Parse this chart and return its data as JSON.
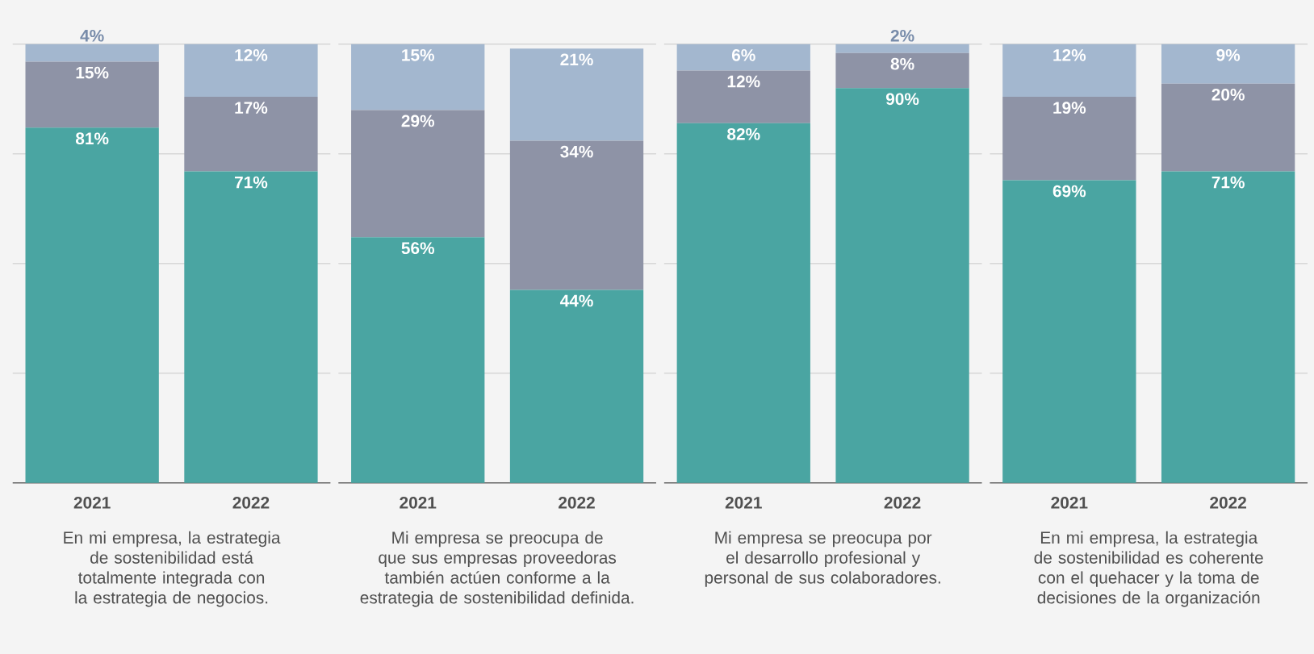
{
  "chart_data": [
    {
      "type": "bar",
      "stacked": true,
      "categories": [
        "2021",
        "2022"
      ],
      "xlabel": "En mi empresa, la estrategia de sostenibilidad está totalmente integrada con la estrategia de negocios.",
      "ylim": [
        0,
        100
      ],
      "yticks": [
        {
          "value": 0,
          "label": null
        },
        {
          "value": 25,
          "label": null
        },
        {
          "value": 50,
          "label": null
        },
        {
          "value": 75,
          "label": null
        },
        {
          "value": 100,
          "label": null
        }
      ],
      "grid": "y",
      "tick_labels": "x",
      "series": [
        {
          "color": "#4aa5a2",
          "values": [
            81,
            71
          ],
          "value_labels": [
            "81%",
            "71%"
          ]
        },
        {
          "color": "#8e93a6",
          "values": [
            15,
            17
          ],
          "value_labels": [
            "15%",
            "17%"
          ]
        },
        {
          "color": "#a3b7cf",
          "values": [
            4,
            12
          ],
          "value_labels": [
            "4%",
            "12%"
          ]
        }
      ]
    },
    {
      "type": "bar",
      "stacked": true,
      "categories": [
        "2021",
        "2022"
      ],
      "xlabel": "Mi empresa se preocupa de que sus empresas proveedoras también actúen conforme a la estrategia de sostenibilidad definida.",
      "ylim": [
        0,
        100
      ],
      "yticks": [
        {
          "value": 0,
          "label": null
        },
        {
          "value": 25,
          "label": null
        },
        {
          "value": 50,
          "label": null
        },
        {
          "value": 75,
          "label": null
        },
        {
          "value": 100,
          "label": null
        }
      ],
      "grid": "y",
      "tick_labels": "x",
      "series": [
        {
          "color": "#4aa5a2",
          "values": [
            56,
            44
          ],
          "value_labels": [
            "56%",
            "44%"
          ]
        },
        {
          "color": "#8e93a6",
          "values": [
            29,
            34
          ],
          "value_labels": [
            "29%",
            "34%"
          ]
        },
        {
          "color": "#a3b7cf",
          "values": [
            15,
            21
          ],
          "value_labels": [
            "15%",
            "21%"
          ]
        }
      ]
    },
    {
      "type": "bar",
      "stacked": true,
      "categories": [
        "2021",
        "2022"
      ],
      "xlabel": "Mi empresa se preocupa por el desarrollo profesional y personal de sus colaboradores.",
      "ylim": [
        0,
        100
      ],
      "yticks": [
        {
          "value": 0,
          "label": null
        },
        {
          "value": 25,
          "label": null
        },
        {
          "value": 50,
          "label": null
        },
        {
          "value": 75,
          "label": null
        },
        {
          "value": 100,
          "label": null
        }
      ],
      "grid": "y",
      "tick_labels": "x",
      "series": [
        {
          "color": "#4aa5a2",
          "values": [
            82,
            90
          ],
          "value_labels": [
            "82%",
            "90%"
          ]
        },
        {
          "color": "#8e93a6",
          "values": [
            12,
            8
          ],
          "value_labels": [
            "12%",
            "8%"
          ]
        },
        {
          "color": "#a3b7cf",
          "values": [
            6,
            2
          ],
          "value_labels": [
            "6%",
            "2%"
          ]
        }
      ]
    },
    {
      "type": "bar",
      "stacked": true,
      "categories": [
        "2021",
        "2022"
      ],
      "xlabel": "En mi empresa, la estrategia de sostenibilidad es coherente con el quehacer y la toma de decisiones de la organización",
      "ylim": [
        0,
        100
      ],
      "yticks": [
        {
          "value": 0,
          "label": null
        },
        {
          "value": 25,
          "label": null
        },
        {
          "value": 50,
          "label": null
        },
        {
          "value": 75,
          "label": null
        },
        {
          "value": 100,
          "label": null
        }
      ],
      "grid": "y",
      "tick_labels": "x",
      "series": [
        {
          "color": "#4aa5a2",
          "values": [
            69,
            71
          ],
          "value_labels": [
            "69%",
            "71%"
          ]
        },
        {
          "color": "#8e93a6",
          "values": [
            19,
            20
          ],
          "value_labels": [
            "19%",
            "20%"
          ]
        },
        {
          "color": "#a3b7cf",
          "values": [
            12,
            9
          ],
          "value_labels": [
            "12%",
            "9%"
          ]
        }
      ]
    }
  ]
}
